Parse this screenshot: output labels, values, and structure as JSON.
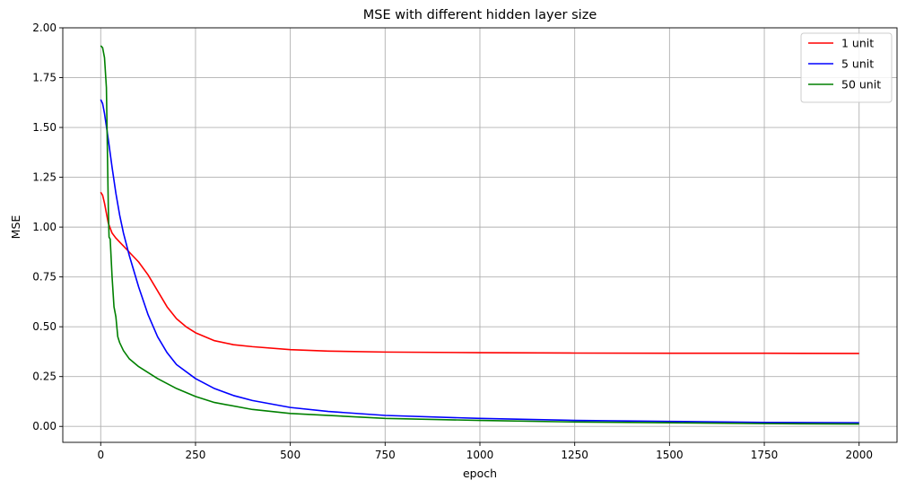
{
  "chart_data": {
    "type": "line",
    "title": "MSE with different hidden layer size",
    "xlabel": "epoch",
    "ylabel": "MSE",
    "xlim": [
      -100,
      2100
    ],
    "ylim": [
      -0.08,
      2.0
    ],
    "xticks": [
      0,
      250,
      500,
      750,
      1000,
      1250,
      1500,
      1750,
      2000
    ],
    "yticks": [
      0.0,
      0.25,
      0.5,
      0.75,
      1.0,
      1.25,
      1.5,
      1.75,
      2.0
    ],
    "xtick_labels": [
      "0",
      "250",
      "500",
      "750",
      "1000",
      "1250",
      "1500",
      "1750",
      "2000"
    ],
    "ytick_labels": [
      "0.00",
      "0.25",
      "0.50",
      "0.75",
      "1.00",
      "1.25",
      "1.50",
      "1.75",
      "2.00"
    ],
    "grid": true,
    "legend_position": "top-right",
    "series": [
      {
        "name": "1 unit",
        "color": "#ff0000",
        "x": [
          0,
          5,
          10,
          15,
          20,
          30,
          40,
          50,
          60,
          75,
          100,
          125,
          150,
          175,
          200,
          225,
          250,
          300,
          350,
          400,
          500,
          600,
          750,
          1000,
          1250,
          1500,
          1750,
          2000
        ],
        "y": [
          1.175,
          1.16,
          1.12,
          1.07,
          1.02,
          0.97,
          0.945,
          0.925,
          0.905,
          0.875,
          0.825,
          0.76,
          0.68,
          0.6,
          0.54,
          0.5,
          0.47,
          0.43,
          0.41,
          0.4,
          0.385,
          0.378,
          0.373,
          0.37,
          0.368,
          0.367,
          0.367,
          0.366
        ]
      },
      {
        "name": "5 unit",
        "color": "#0000ff",
        "x": [
          0,
          5,
          10,
          20,
          30,
          40,
          50,
          60,
          75,
          100,
          125,
          150,
          175,
          200,
          250,
          300,
          350,
          400,
          500,
          600,
          750,
          1000,
          1250,
          1500,
          1750,
          2000
        ],
        "y": [
          1.64,
          1.62,
          1.57,
          1.44,
          1.3,
          1.17,
          1.06,
          0.97,
          0.86,
          0.7,
          0.56,
          0.45,
          0.37,
          0.31,
          0.24,
          0.19,
          0.155,
          0.13,
          0.095,
          0.075,
          0.055,
          0.04,
          0.03,
          0.025,
          0.02,
          0.018
        ]
      },
      {
        "name": "50 unit",
        "color": "#008000",
        "x": [
          0,
          5,
          10,
          15,
          20,
          22,
          25,
          30,
          35,
          40,
          45,
          50,
          60,
          75,
          100,
          150,
          200,
          250,
          300,
          400,
          500,
          750,
          1000,
          1250,
          1500,
          1750,
          2000
        ],
        "y": [
          1.91,
          1.9,
          1.85,
          1.7,
          1.1,
          0.95,
          0.94,
          0.75,
          0.6,
          0.55,
          0.45,
          0.42,
          0.38,
          0.34,
          0.3,
          0.24,
          0.19,
          0.15,
          0.12,
          0.085,
          0.065,
          0.04,
          0.03,
          0.022,
          0.018,
          0.014,
          0.012
        ]
      }
    ]
  }
}
